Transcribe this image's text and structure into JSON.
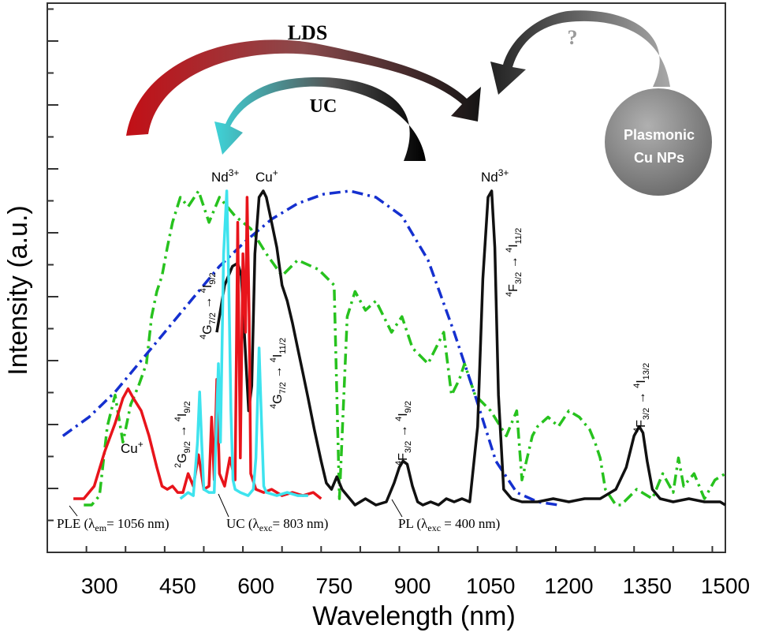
{
  "chart_data": {
    "type": "line",
    "xlabel": "Wavelength (nm)",
    "ylabel": "Intensity (a.u.)",
    "xlim": [
      200,
      1500
    ],
    "x_ticks": [
      "300",
      "450",
      "600",
      "750",
      "900",
      "1050",
      "1200",
      "1350",
      "1500"
    ],
    "grid": false,
    "series": [
      {
        "name": "PLE (λem= 1056 nm)",
        "color": "#e8141b",
        "style": "solid",
        "x": [
          250,
          270,
          290,
          310,
          330,
          345,
          355,
          365,
          380,
          395,
          410,
          420,
          430,
          440,
          450,
          460,
          470,
          480,
          490,
          500,
          510,
          515,
          520,
          525,
          530,
          540,
          550,
          560,
          565,
          570,
          575,
          580,
          583,
          587,
          590,
          600,
          615,
          630,
          650,
          670,
          690,
          710,
          725
        ],
        "y": [
          0.02,
          0.02,
          0.06,
          0.17,
          0.26,
          0.34,
          0.37,
          0.34,
          0.3,
          0.22,
          0.12,
          0.06,
          0.05,
          0.06,
          0.04,
          0.04,
          0.1,
          0.06,
          0.16,
          0.05,
          0.06,
          0.28,
          0.08,
          0.4,
          0.1,
          0.06,
          0.15,
          0.08,
          0.9,
          0.15,
          0.8,
          0.55,
          0.98,
          0.6,
          0.1,
          0.05,
          0.04,
          0.05,
          0.03,
          0.04,
          0.03,
          0.04,
          0.02
        ]
      },
      {
        "name": "UC (λexc= 803 nm)",
        "color": "#3ee3ee",
        "style": "solid",
        "x": [
          455,
          470,
          480,
          488,
          492,
          496,
          500,
          510,
          520,
          528,
          532,
          538,
          544,
          548,
          552,
          556,
          560,
          570,
          585,
          595,
          600,
          606,
          610,
          615,
          620,
          640,
          660,
          680,
          700
        ],
        "y": [
          0.02,
          0.04,
          0.03,
          0.2,
          0.36,
          0.2,
          0.05,
          0.04,
          0.04,
          0.45,
          0.2,
          0.8,
          1.0,
          0.7,
          0.3,
          0.08,
          0.05,
          0.04,
          0.03,
          0.05,
          0.15,
          0.5,
          0.3,
          0.06,
          0.04,
          0.03,
          0.04,
          0.03,
          0.03
        ]
      },
      {
        "name": "PL (λexc = 400 nm)",
        "color": "#111111",
        "style": "solid",
        "x": [
          525,
          540,
          555,
          565,
          572,
          580,
          586,
          592,
          598,
          606,
          614,
          620,
          630,
          640,
          650,
          660,
          670,
          680,
          690,
          700,
          712,
          725,
          735,
          745,
          755,
          765,
          775,
          790,
          810,
          830,
          850,
          865,
          875,
          882,
          890,
          900,
          910,
          920,
          935,
          950,
          965,
          980,
          995,
          1010,
          1025,
          1035,
          1045,
          1052,
          1058,
          1065,
          1075,
          1090,
          1110,
          1140,
          1170,
          1200,
          1230,
          1260,
          1290,
          1310,
          1325,
          1335,
          1342,
          1350,
          1360,
          1375,
          1400,
          1430,
          1460,
          1490,
          1500
        ],
        "y": [
          0.55,
          0.7,
          0.76,
          0.77,
          0.73,
          0.48,
          0.3,
          0.38,
          0.8,
          0.98,
          1.0,
          0.98,
          0.9,
          0.82,
          0.7,
          0.65,
          0.58,
          0.5,
          0.42,
          0.34,
          0.24,
          0.14,
          0.07,
          0.05,
          0.09,
          0.05,
          0.03,
          0.0,
          0.02,
          0.0,
          0.01,
          0.07,
          0.12,
          0.14,
          0.13,
          0.06,
          0.01,
          0.0,
          0.01,
          0.0,
          0.02,
          0.01,
          0.02,
          0.01,
          0.25,
          0.72,
          0.98,
          1.0,
          0.82,
          0.35,
          0.05,
          0.02,
          0.01,
          0.01,
          0.02,
          0.01,
          0.02,
          0.02,
          0.05,
          0.12,
          0.22,
          0.25,
          0.23,
          0.14,
          0.05,
          0.02,
          0.01,
          0.02,
          0.01,
          0.01,
          0.0
        ]
      },
      {
        "name": "",
        "color": "#27c21e",
        "style": "dashdot",
        "x": [
          270,
          285,
          300,
          315,
          330,
          345,
          360,
          375,
          390,
          400,
          410,
          420,
          430,
          440,
          455,
          470,
          490,
          510,
          530,
          560,
          590,
          620,
          650,
          680,
          720,
          750,
          760,
          775,
          790,
          810,
          830,
          860,
          880,
          900,
          930,
          960,
          975,
          990,
          1000,
          1020,
          1050,
          1080,
          1100,
          1110,
          1130,
          1140,
          1160,
          1180,
          1200,
          1220,
          1240,
          1250,
          1260,
          1270,
          1290,
          1300,
          1330,
          1360,
          1380,
          1400,
          1410,
          1420,
          1440,
          1460,
          1480,
          1500
        ],
        "y": [
          0.0,
          0.0,
          0.03,
          0.25,
          0.35,
          0.2,
          0.32,
          0.38,
          0.45,
          0.6,
          0.68,
          0.73,
          0.82,
          0.9,
          0.98,
          0.95,
          1.0,
          0.9,
          0.98,
          0.92,
          0.88,
          0.8,
          0.73,
          0.78,
          0.75,
          0.7,
          0.02,
          0.6,
          0.68,
          0.62,
          0.65,
          0.55,
          0.6,
          0.5,
          0.45,
          0.55,
          0.35,
          0.4,
          0.45,
          0.35,
          0.3,
          0.22,
          0.3,
          0.08,
          0.22,
          0.25,
          0.28,
          0.25,
          0.3,
          0.28,
          0.24,
          0.2,
          0.15,
          0.05,
          0.0,
          0.0,
          0.05,
          0.02,
          0.1,
          0.04,
          0.15,
          0.06,
          0.1,
          0.02,
          0.08,
          0.1
        ]
      },
      {
        "name": "",
        "color": "#1530cf",
        "style": "dashdot",
        "x": [
          230,
          280,
          330,
          380,
          430,
          480,
          530,
          580,
          630,
          680,
          730,
          780,
          830,
          880,
          930,
          980,
          1020,
          1060,
          1100,
          1140,
          1180
        ],
        "y": [
          0.22,
          0.28,
          0.36,
          0.46,
          0.56,
          0.66,
          0.76,
          0.84,
          0.91,
          0.96,
          0.99,
          1.0,
          0.98,
          0.92,
          0.78,
          0.55,
          0.35,
          0.14,
          0.04,
          0.01,
          0.0
        ]
      }
    ],
    "annotations": [
      {
        "id": "lds",
        "text": "LDS"
      },
      {
        "id": "uc",
        "text": "UC"
      },
      {
        "id": "question",
        "text": "?"
      },
      {
        "id": "np_line1",
        "text": "Plasmonic"
      },
      {
        "id": "np_line2",
        "text": "Cu NPs"
      }
    ],
    "peak_labels": {
      "nd_left": {
        "base": "Nd",
        "sup": "3+"
      },
      "cu_top": {
        "base": "Cu",
        "sup": "+"
      },
      "nd_right": {
        "base": "Nd",
        "sup": "3+"
      },
      "cu_bottom": {
        "base": "Cu",
        "sup": "+"
      }
    },
    "transitions": {
      "t1": {
        "upper": "2",
        "upperLetter": "G",
        "upperSub": "9/2",
        "lower": "4",
        "lowerLetter": "I",
        "lowerSub": "9/2"
      },
      "t2": {
        "upper": "4",
        "upperLetter": "G",
        "upperSub": "7/2",
        "lower": "4",
        "lowerLetter": "I",
        "lowerSub": "9/2"
      },
      "t3": {
        "upper": "4",
        "upperLetter": "G",
        "upperSub": "7/2",
        "lower": "4",
        "lowerLetter": "I",
        "lowerSub": "11/2"
      },
      "t4": {
        "upper": "4",
        "upperLetter": "F",
        "upperSub": "3/2",
        "lower": "4",
        "lowerLetter": "I",
        "lowerSub": "9/2"
      },
      "t5": {
        "upper": "4",
        "upperLetter": "F",
        "upperSub": "3/2",
        "lower": "4",
        "lowerLetter": "I",
        "lowerSub": "11/2"
      },
      "t6": {
        "upper": "4",
        "upperLetter": "F",
        "upperSub": "3/2",
        "lower": "4",
        "lowerLetter": "I",
        "lowerSub": "13/2"
      }
    },
    "legend_labels": {
      "ple": {
        "pre": "PLE (",
        "lambda": "λ",
        "sub": "em",
        "post": "= 1056 nm)"
      },
      "uc": {
        "pre": "UC (",
        "lambda": "λ",
        "sub": "exc",
        "post": "= 803 nm)"
      },
      "pl": {
        "pre": "PL (",
        "lambda": "λ",
        "sub": "exc",
        "post": " = 400 nm)"
      }
    }
  }
}
